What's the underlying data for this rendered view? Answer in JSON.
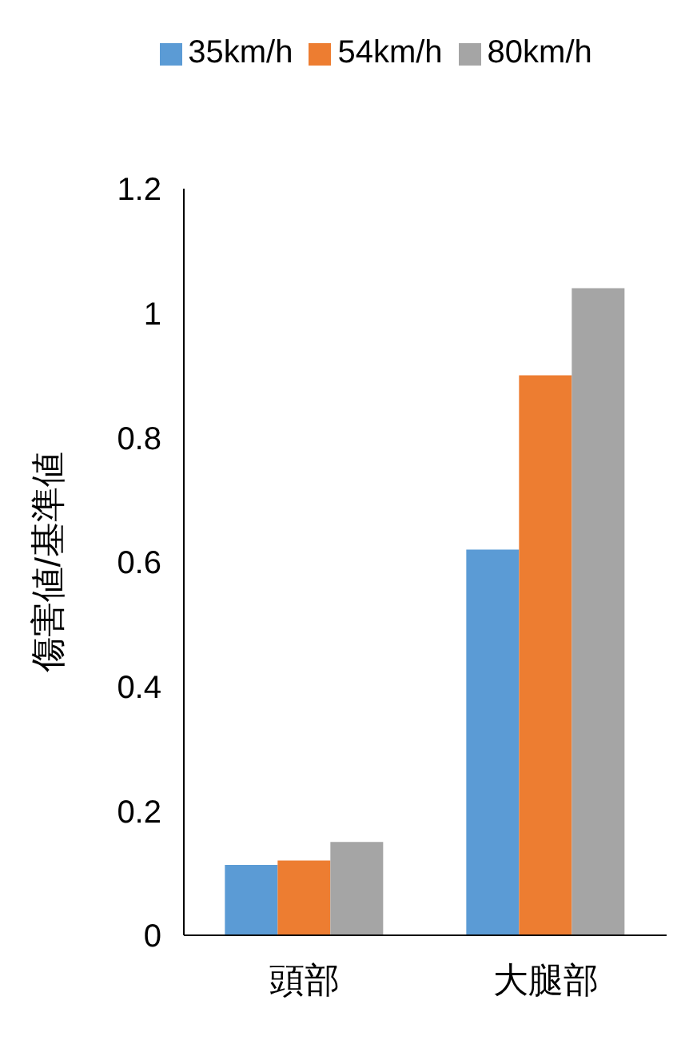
{
  "chart_data": {
    "type": "bar",
    "ylabel": "傷害値/基準値",
    "categories": [
      "頭部",
      "大腿部"
    ],
    "series": [
      {
        "name": "35km/h",
        "color": "#5b9bd5",
        "values": [
          0.113,
          0.62
        ]
      },
      {
        "name": "54km/h",
        "color": "#ed7d31",
        "values": [
          0.12,
          0.9
        ]
      },
      {
        "name": "80km/h",
        "color": "#a5a5a5",
        "values": [
          0.15,
          1.04
        ]
      }
    ],
    "ylim": [
      0,
      1.2
    ],
    "yticks": [
      0,
      0.2,
      0.4,
      0.6,
      0.8,
      1,
      1.2
    ],
    "grid": false,
    "legend": "top"
  }
}
